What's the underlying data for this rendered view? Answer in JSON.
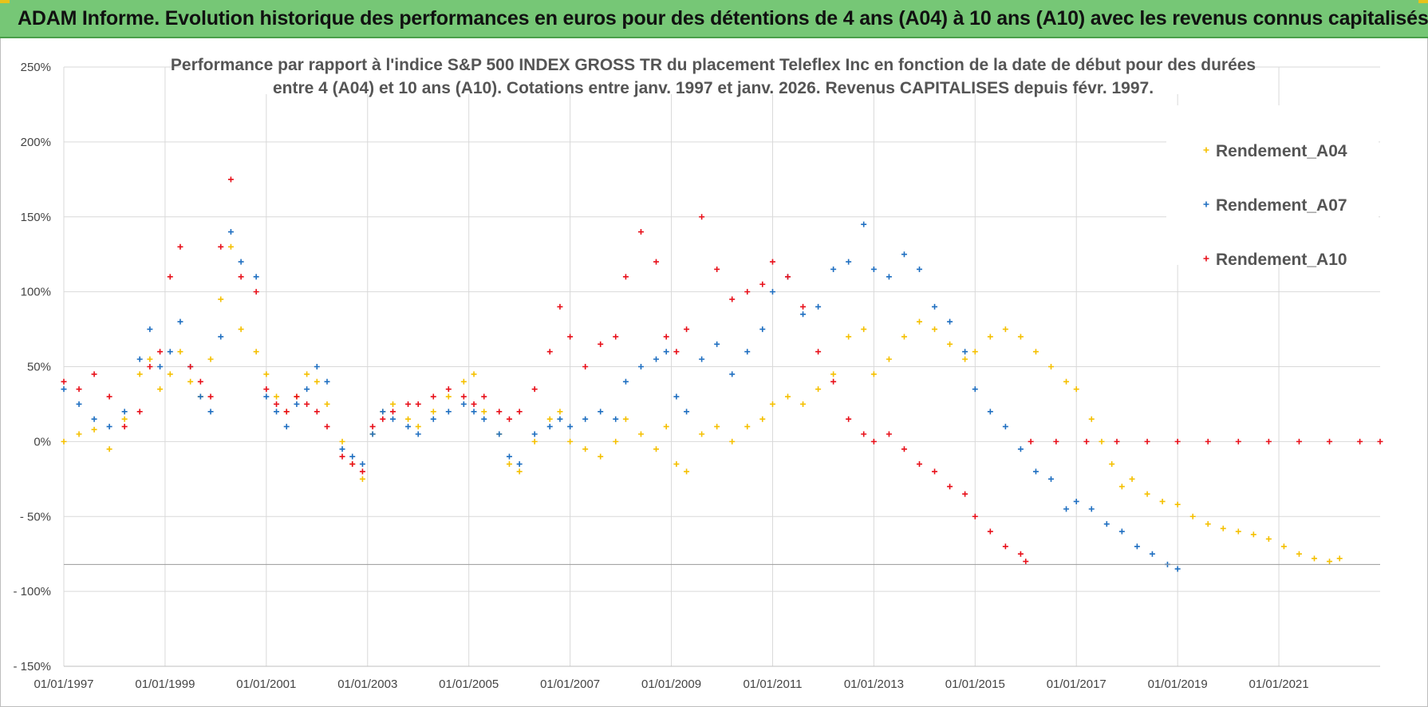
{
  "header": {
    "title": "ADAM Informe. Evolution historique des performances en euros pour des détentions de 4 ans (A04) à 10 ans (A10) avec les revenus connus capitalisés",
    "accent_color": "#76c776"
  },
  "chart_data": {
    "type": "scatter",
    "title_line1": "Performance par rapport à l'indice S&P 500 INDEX GROSS TR  du placement Teleflex Inc en fonction de la date de début pour des durées",
    "title_line2": "entre 4 (A04) et 10 ans (A10).  Cotations entre janv. 1997 et janv. 2026. Revenus CAPITALISES depuis févr. 1997.",
    "xlabel": "",
    "ylabel": "",
    "xlim": [
      1997.0,
      2023.0
    ],
    "ylim": [
      -150,
      250
    ],
    "x_ticks": [
      1997,
      1999,
      2001,
      2003,
      2005,
      2007,
      2009,
      2011,
      2013,
      2015,
      2017,
      2019,
      2021
    ],
    "x_tick_labels": [
      "01/01/1997",
      "01/01/1999",
      "01/01/2001",
      "01/01/2003",
      "01/01/2005",
      "01/01/2007",
      "01/01/2009",
      "01/01/2011",
      "01/01/2013",
      "01/01/2015",
      "01/01/2017",
      "01/01/2019",
      "01/01/2021"
    ],
    "y_ticks": [
      250,
      200,
      150,
      100,
      50,
      0,
      -50,
      -100,
      -150
    ],
    "y_tick_labels": [
      "250%",
      "200%",
      "150%",
      "100%",
      "50%",
      "0%",
      "- 50%",
      "- 100%",
      "- 150%"
    ],
    "grid": true,
    "legend_position": "top-right",
    "marker": "+",
    "series": [
      {
        "name": "Rendement_A04",
        "color": "#f5c000",
        "points": [
          [
            1997.0,
            0
          ],
          [
            1997.3,
            5
          ],
          [
            1997.6,
            8
          ],
          [
            1997.9,
            -5
          ],
          [
            1998.2,
            15
          ],
          [
            1998.5,
            45
          ],
          [
            1998.7,
            55
          ],
          [
            1998.9,
            35
          ],
          [
            1999.1,
            45
          ],
          [
            1999.3,
            60
          ],
          [
            1999.5,
            40
          ],
          [
            1999.7,
            30
          ],
          [
            1999.9,
            55
          ],
          [
            2000.1,
            95
          ],
          [
            2000.3,
            130
          ],
          [
            2000.5,
            75
          ],
          [
            2000.8,
            60
          ],
          [
            2001.0,
            45
          ],
          [
            2001.2,
            30
          ],
          [
            2001.4,
            20
          ],
          [
            2001.6,
            30
          ],
          [
            2001.8,
            45
          ],
          [
            2002.0,
            40
          ],
          [
            2002.2,
            25
          ],
          [
            2002.5,
            0
          ],
          [
            2002.7,
            -15
          ],
          [
            2002.9,
            -25
          ],
          [
            2003.1,
            5
          ],
          [
            2003.3,
            20
          ],
          [
            2003.5,
            25
          ],
          [
            2003.8,
            15
          ],
          [
            2004.0,
            10
          ],
          [
            2004.3,
            20
          ],
          [
            2004.6,
            30
          ],
          [
            2004.9,
            40
          ],
          [
            2005.1,
            45
          ],
          [
            2005.3,
            20
          ],
          [
            2005.6,
            5
          ],
          [
            2005.8,
            -15
          ],
          [
            2006.0,
            -20
          ],
          [
            2006.3,
            0
          ],
          [
            2006.6,
            15
          ],
          [
            2006.8,
            20
          ],
          [
            2007.0,
            0
          ],
          [
            2007.3,
            -5
          ],
          [
            2007.6,
            -10
          ],
          [
            2007.9,
            0
          ],
          [
            2008.1,
            15
          ],
          [
            2008.4,
            5
          ],
          [
            2008.7,
            -5
          ],
          [
            2008.9,
            10
          ],
          [
            2009.1,
            -15
          ],
          [
            2009.3,
            -20
          ],
          [
            2009.6,
            5
          ],
          [
            2009.9,
            10
          ],
          [
            2010.2,
            0
          ],
          [
            2010.5,
            10
          ],
          [
            2010.8,
            15
          ],
          [
            2011.0,
            25
          ],
          [
            2011.3,
            30
          ],
          [
            2011.6,
            25
          ],
          [
            2011.9,
            35
          ],
          [
            2012.2,
            45
          ],
          [
            2012.5,
            70
          ],
          [
            2012.8,
            75
          ],
          [
            2013.0,
            45
          ],
          [
            2013.3,
            55
          ],
          [
            2013.6,
            70
          ],
          [
            2013.9,
            80
          ],
          [
            2014.2,
            75
          ],
          [
            2014.5,
            65
          ],
          [
            2014.8,
            55
          ],
          [
            2015.0,
            60
          ],
          [
            2015.3,
            70
          ],
          [
            2015.6,
            75
          ],
          [
            2015.9,
            70
          ],
          [
            2016.2,
            60
          ],
          [
            2016.5,
            50
          ],
          [
            2016.8,
            40
          ],
          [
            2017.0,
            35
          ],
          [
            2017.3,
            15
          ],
          [
            2017.5,
            0
          ],
          [
            2017.7,
            -15
          ],
          [
            2017.9,
            -30
          ],
          [
            2018.1,
            -25
          ],
          [
            2018.4,
            -35
          ],
          [
            2018.7,
            -40
          ],
          [
            2019.0,
            -42
          ],
          [
            2019.3,
            -50
          ],
          [
            2019.6,
            -55
          ],
          [
            2019.9,
            -58
          ],
          [
            2020.2,
            -60
          ],
          [
            2020.5,
            -62
          ],
          [
            2020.8,
            -65
          ],
          [
            2021.1,
            -70
          ],
          [
            2021.4,
            -75
          ],
          [
            2021.7,
            -78
          ],
          [
            2022.0,
            -80
          ],
          [
            2022.2,
            -78
          ]
        ]
      },
      {
        "name": "Rendement_A07",
        "color": "#1f6fc1",
        "points": [
          [
            1997.0,
            35
          ],
          [
            1997.3,
            25
          ],
          [
            1997.6,
            15
          ],
          [
            1997.9,
            10
          ],
          [
            1998.2,
            20
          ],
          [
            1998.5,
            55
          ],
          [
            1998.7,
            75
          ],
          [
            1998.9,
            50
          ],
          [
            1999.1,
            60
          ],
          [
            1999.3,
            80
          ],
          [
            1999.5,
            50
          ],
          [
            1999.7,
            30
          ],
          [
            1999.9,
            20
          ],
          [
            2000.1,
            70
          ],
          [
            2000.3,
            140
          ],
          [
            2000.5,
            120
          ],
          [
            2000.8,
            110
          ],
          [
            2001.0,
            30
          ],
          [
            2001.2,
            20
          ],
          [
            2001.4,
            10
          ],
          [
            2001.6,
            25
          ],
          [
            2001.8,
            35
          ],
          [
            2002.0,
            50
          ],
          [
            2002.2,
            40
          ],
          [
            2002.5,
            -5
          ],
          [
            2002.7,
            -10
          ],
          [
            2002.9,
            -15
          ],
          [
            2003.1,
            5
          ],
          [
            2003.3,
            20
          ],
          [
            2003.5,
            15
          ],
          [
            2003.8,
            10
          ],
          [
            2004.0,
            5
          ],
          [
            2004.3,
            15
          ],
          [
            2004.6,
            20
          ],
          [
            2004.9,
            25
          ],
          [
            2005.1,
            20
          ],
          [
            2005.3,
            15
          ],
          [
            2005.6,
            5
          ],
          [
            2005.8,
            -10
          ],
          [
            2006.0,
            -15
          ],
          [
            2006.3,
            5
          ],
          [
            2006.6,
            10
          ],
          [
            2006.8,
            15
          ],
          [
            2007.0,
            10
          ],
          [
            2007.3,
            15
          ],
          [
            2007.6,
            20
          ],
          [
            2007.9,
            15
          ],
          [
            2008.1,
            40
          ],
          [
            2008.4,
            50
          ],
          [
            2008.7,
            55
          ],
          [
            2008.9,
            60
          ],
          [
            2009.1,
            30
          ],
          [
            2009.3,
            20
          ],
          [
            2009.6,
            55
          ],
          [
            2009.9,
            65
          ],
          [
            2010.2,
            45
          ],
          [
            2010.5,
            60
          ],
          [
            2010.8,
            75
          ],
          [
            2011.0,
            100
          ],
          [
            2011.3,
            110
          ],
          [
            2011.6,
            85
          ],
          [
            2011.9,
            90
          ],
          [
            2012.2,
            115
          ],
          [
            2012.5,
            120
          ],
          [
            2012.8,
            145
          ],
          [
            2013.0,
            115
          ],
          [
            2013.3,
            110
          ],
          [
            2013.6,
            125
          ],
          [
            2013.9,
            115
          ],
          [
            2014.2,
            90
          ],
          [
            2014.5,
            80
          ],
          [
            2014.8,
            60
          ],
          [
            2015.0,
            35
          ],
          [
            2015.3,
            20
          ],
          [
            2015.6,
            10
          ],
          [
            2015.9,
            -5
          ],
          [
            2016.2,
            -20
          ],
          [
            2016.5,
            -25
          ],
          [
            2016.8,
            -45
          ],
          [
            2017.0,
            -40
          ],
          [
            2017.3,
            -45
          ],
          [
            2017.6,
            -55
          ],
          [
            2017.9,
            -60
          ],
          [
            2018.2,
            -70
          ],
          [
            2018.5,
            -75
          ],
          [
            2018.8,
            -82
          ],
          [
            2019.0,
            -85
          ]
        ]
      },
      {
        "name": "Rendement_A10",
        "color": "#e8101a",
        "points": [
          [
            1997.0,
            40
          ],
          [
            1997.3,
            35
          ],
          [
            1997.6,
            45
          ],
          [
            1997.9,
            30
          ],
          [
            1998.2,
            10
          ],
          [
            1998.5,
            20
          ],
          [
            1998.7,
            50
          ],
          [
            1998.9,
            60
          ],
          [
            1999.1,
            110
          ],
          [
            1999.3,
            130
          ],
          [
            1999.5,
            50
          ],
          [
            1999.7,
            40
          ],
          [
            1999.9,
            30
          ],
          [
            2000.1,
            130
          ],
          [
            2000.3,
            175
          ],
          [
            2000.5,
            110
          ],
          [
            2000.8,
            100
          ],
          [
            2001.0,
            35
          ],
          [
            2001.2,
            25
          ],
          [
            2001.4,
            20
          ],
          [
            2001.6,
            30
          ],
          [
            2001.8,
            25
          ],
          [
            2002.0,
            20
          ],
          [
            2002.2,
            10
          ],
          [
            2002.5,
            -10
          ],
          [
            2002.7,
            -15
          ],
          [
            2002.9,
            -20
          ],
          [
            2003.1,
            10
          ],
          [
            2003.3,
            15
          ],
          [
            2003.5,
            20
          ],
          [
            2003.8,
            25
          ],
          [
            2004.0,
            25
          ],
          [
            2004.3,
            30
          ],
          [
            2004.6,
            35
          ],
          [
            2004.9,
            30
          ],
          [
            2005.1,
            25
          ],
          [
            2005.3,
            30
          ],
          [
            2005.6,
            20
          ],
          [
            2005.8,
            15
          ],
          [
            2006.0,
            20
          ],
          [
            2006.3,
            35
          ],
          [
            2006.6,
            60
          ],
          [
            2006.8,
            90
          ],
          [
            2007.0,
            70
          ],
          [
            2007.3,
            50
          ],
          [
            2007.6,
            65
          ],
          [
            2007.9,
            70
          ],
          [
            2008.1,
            110
          ],
          [
            2008.4,
            140
          ],
          [
            2008.7,
            120
          ],
          [
            2008.9,
            70
          ],
          [
            2009.1,
            60
          ],
          [
            2009.3,
            75
          ],
          [
            2009.6,
            150
          ],
          [
            2009.9,
            115
          ],
          [
            2010.2,
            95
          ],
          [
            2010.5,
            100
          ],
          [
            2010.8,
            105
          ],
          [
            2011.0,
            120
          ],
          [
            2011.3,
            110
          ],
          [
            2011.6,
            90
          ],
          [
            2011.9,
            60
          ],
          [
            2012.2,
            40
          ],
          [
            2012.5,
            15
          ],
          [
            2012.8,
            5
          ],
          [
            2013.0,
            0
          ],
          [
            2013.3,
            5
          ],
          [
            2013.6,
            -5
          ],
          [
            2013.9,
            -15
          ],
          [
            2014.2,
            -20
          ],
          [
            2014.5,
            -30
          ],
          [
            2014.8,
            -35
          ],
          [
            2015.0,
            -50
          ],
          [
            2015.3,
            -60
          ],
          [
            2015.6,
            -70
          ],
          [
            2015.9,
            -75
          ],
          [
            2016.0,
            -80
          ],
          [
            2016.1,
            0
          ],
          [
            2016.6,
            0
          ],
          [
            2017.2,
            0
          ],
          [
            2017.8,
            0
          ],
          [
            2018.4,
            0
          ],
          [
            2019.0,
            0
          ],
          [
            2019.6,
            0
          ],
          [
            2020.2,
            0
          ],
          [
            2020.8,
            0
          ],
          [
            2021.4,
            0
          ],
          [
            2022.0,
            0
          ],
          [
            2022.6,
            0
          ],
          [
            2023.0,
            0
          ]
        ]
      }
    ]
  }
}
